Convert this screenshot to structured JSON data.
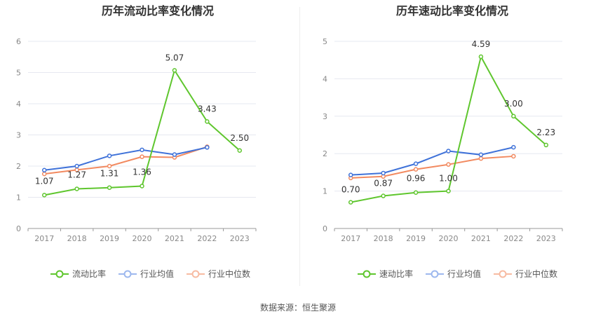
{
  "source": "数据来源：恒生聚源",
  "legend": {
    "chart1": [
      "流动比率",
      "行业均值",
      "行业中位数"
    ],
    "chart2": [
      "速动比率",
      "行业均值",
      "行业中位数"
    ]
  },
  "colors": {
    "company": "#5fc62e",
    "mean": "#3f72d9",
    "median": "#f28a60",
    "grid": "#e6e8f0",
    "axis": "#888888"
  },
  "chart_data": [
    {
      "type": "line",
      "title": "历年流动比率变化情况",
      "categories": [
        "2017",
        "2018",
        "2019",
        "2020",
        "2021",
        "2022",
        "2023"
      ],
      "ylim": [
        0,
        6
      ],
      "yticks": [
        0,
        1,
        2,
        3,
        4,
        5,
        6
      ],
      "series": [
        {
          "name": "流动比率",
          "values": [
            1.07,
            1.27,
            1.31,
            1.36,
            5.07,
            3.43,
            2.5
          ],
          "labels": [
            "1.07",
            "1.27",
            "1.31",
            "1.36",
            "5.07",
            "3.43",
            "2.50"
          ]
        },
        {
          "name": "行业均值",
          "values": [
            1.87,
            2.0,
            2.33,
            2.52,
            2.37,
            2.6,
            null
          ]
        },
        {
          "name": "行业中位数",
          "values": [
            1.75,
            1.88,
            2.0,
            2.3,
            2.28,
            2.62,
            null
          ]
        }
      ]
    },
    {
      "type": "line",
      "title": "历年速动比率变化情况",
      "categories": [
        "2017",
        "2018",
        "2019",
        "2020",
        "2021",
        "2022",
        "2023"
      ],
      "ylim": [
        0,
        5
      ],
      "yticks": [
        0,
        1,
        2,
        3,
        4,
        5
      ],
      "series": [
        {
          "name": "速动比率",
          "values": [
            0.7,
            0.87,
            0.96,
            1.0,
            4.59,
            3.0,
            2.23
          ],
          "labels": [
            "0.70",
            "0.87",
            "0.96",
            "1.00",
            "4.59",
            "3.00",
            "2.23"
          ]
        },
        {
          "name": "行业均值",
          "values": [
            1.43,
            1.48,
            1.73,
            2.07,
            1.97,
            2.17,
            null
          ]
        },
        {
          "name": "行业中位数",
          "values": [
            1.35,
            1.39,
            1.58,
            1.71,
            1.87,
            1.93,
            null
          ]
        }
      ]
    }
  ]
}
